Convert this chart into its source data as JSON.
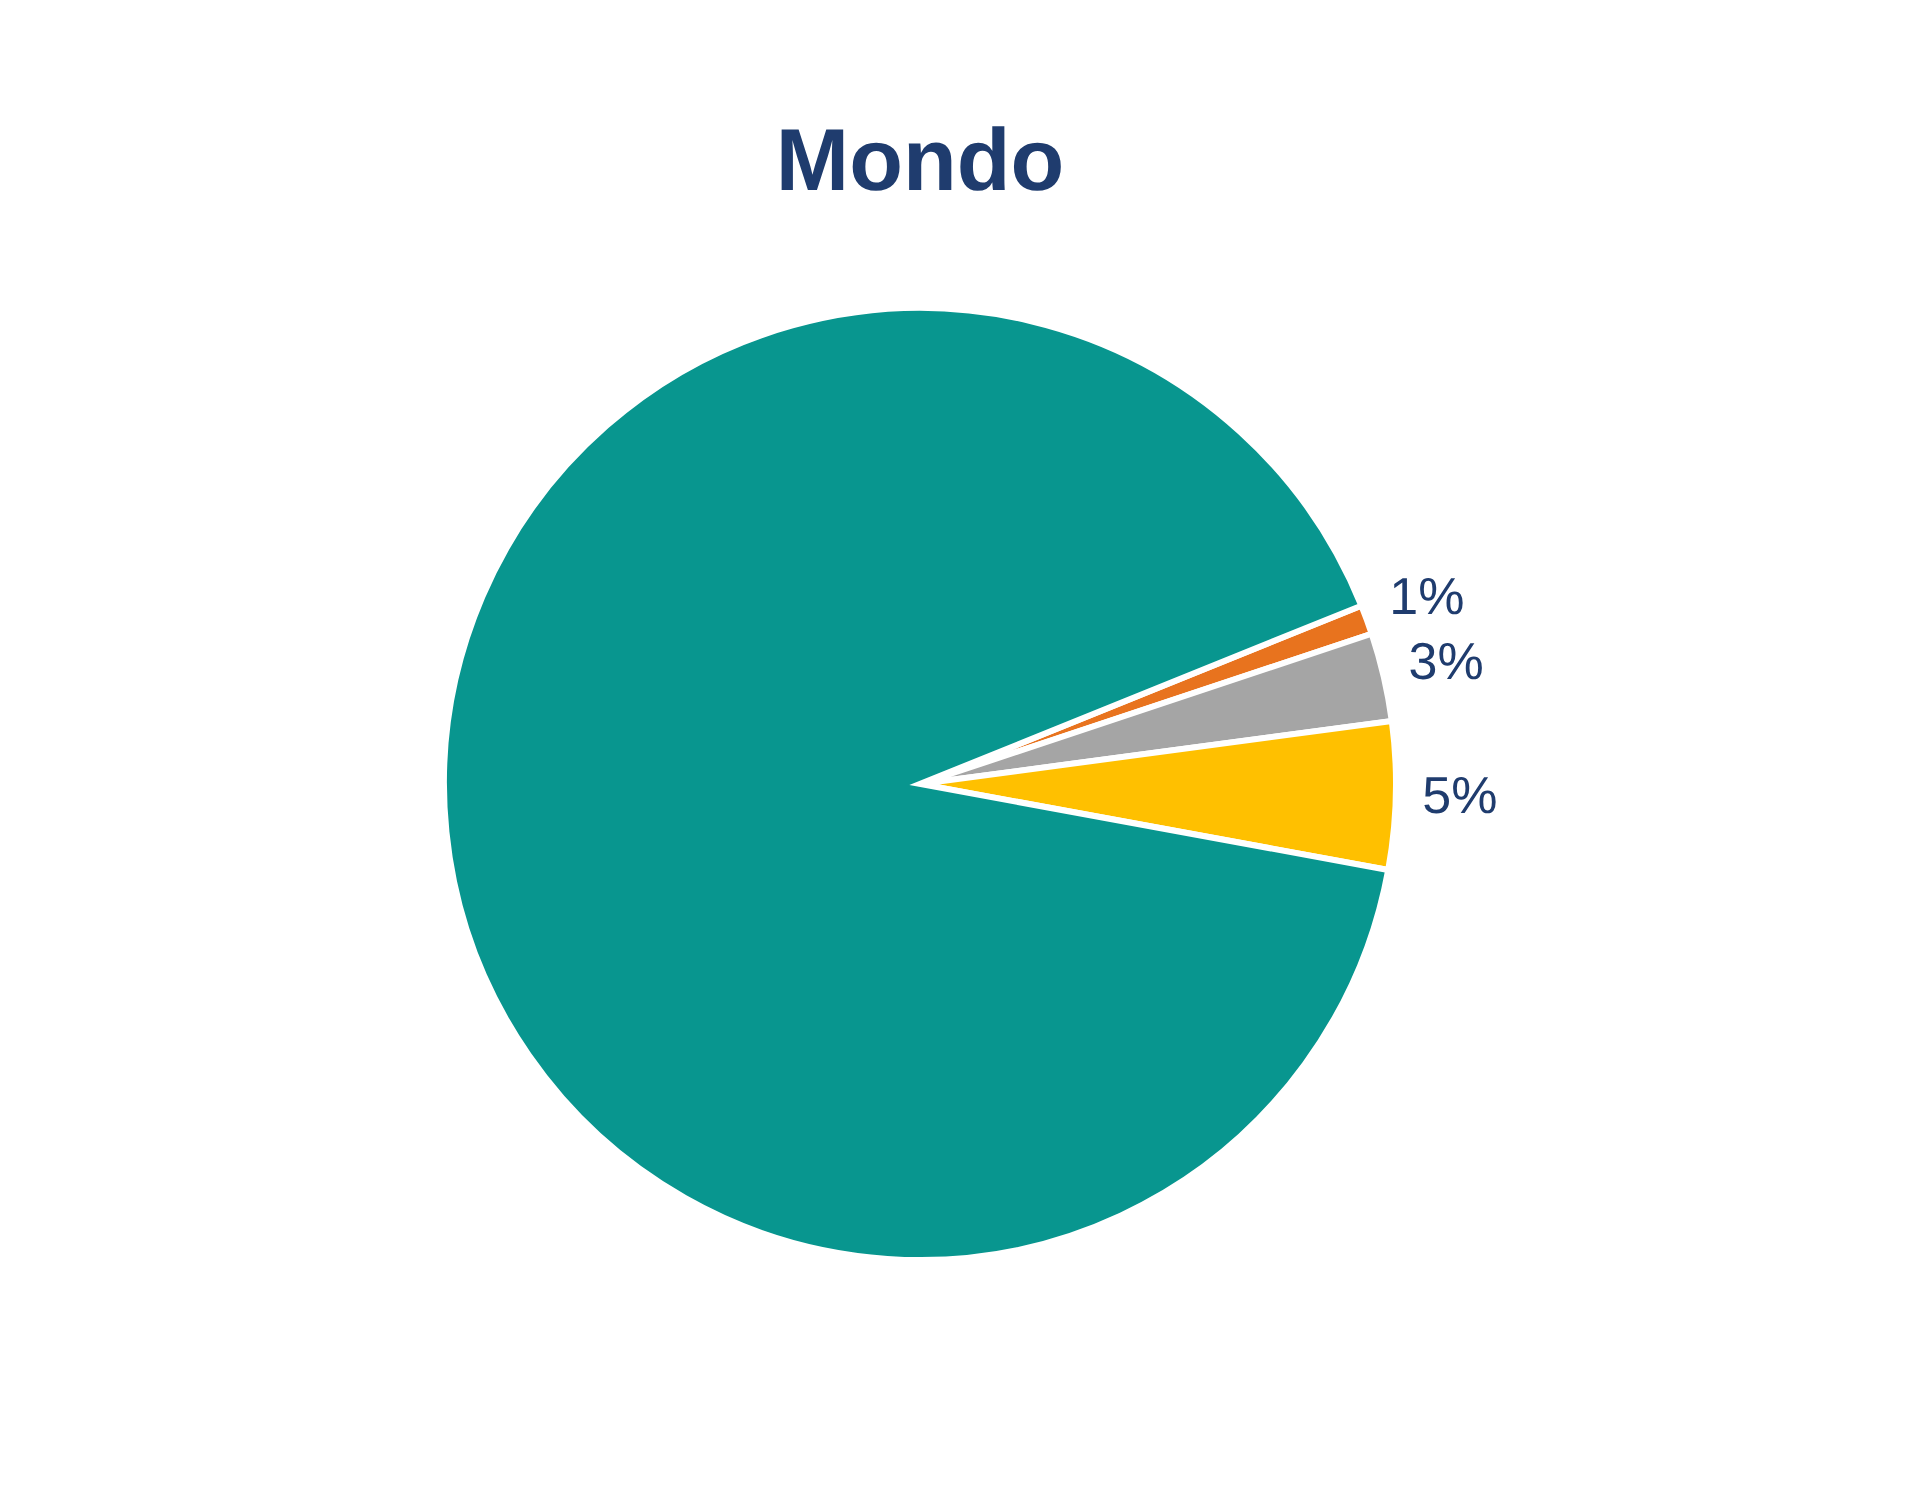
{
  "chart_data": {
    "type": "pie",
    "title": "Mondo",
    "categories": [
      null,
      null,
      null,
      null
    ],
    "values": [
      1,
      3,
      5,
      91
    ],
    "colors": [
      "#e8731e",
      "#a5a5a5",
      "#ffc000",
      "#08968f"
    ],
    "value_labels": [
      "1%",
      "3%",
      "5%",
      null
    ],
    "legend": false
  }
}
